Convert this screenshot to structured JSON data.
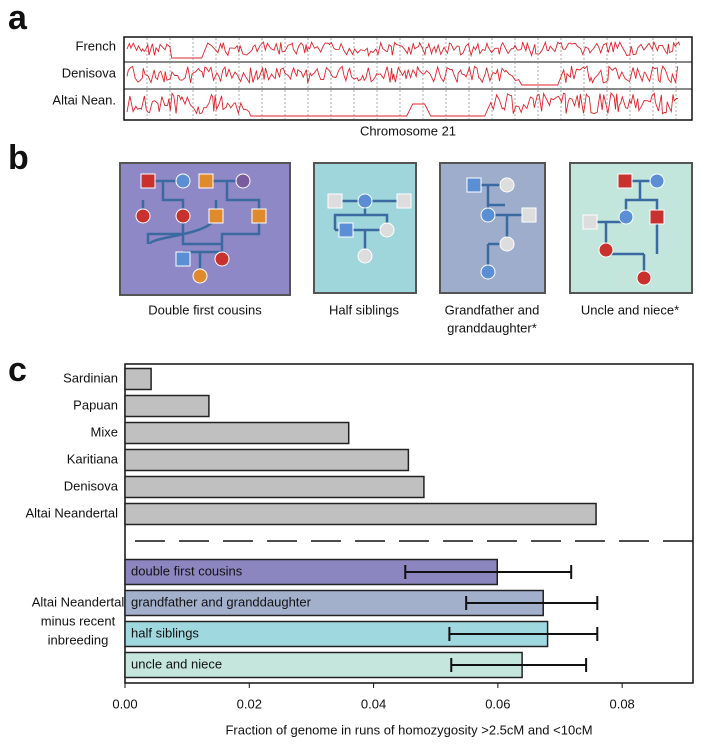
{
  "panel_a": {
    "label": "a",
    "tracks": [
      "French",
      "Denisova",
      "Altai Nean."
    ],
    "xlabel": "Chromosome 21"
  },
  "panel_b": {
    "label": "b",
    "pedigrees": [
      [
        "Double first cousins"
      ],
      [
        "Half siblings"
      ],
      [
        "Grandfather and",
        "granddaughter*"
      ],
      [
        "Uncle and niece*"
      ]
    ]
  },
  "chart_data": {
    "type": "bar",
    "orientation": "horizontal",
    "panel_label": "c",
    "categories": [
      "Sardinian",
      "Papuan",
      "Mixe",
      "Karitiana",
      "Denisova",
      "Altai Neandertal"
    ],
    "values": [
      0.0042,
      0.0135,
      0.036,
      0.0456,
      0.0481,
      0.0758
    ],
    "color": "#c0c0c0",
    "group_label": [
      "Altai Neandertal",
      "minus recent",
      "inbreeding"
    ],
    "subgroup": {
      "categories": [
        "double first cousins",
        "grandfather and granddaughter",
        "half siblings",
        "uncle and niece"
      ],
      "values": [
        0.0599,
        0.0673,
        0.068,
        0.0639
      ],
      "error_low": [
        0.0451,
        0.0549,
        0.0522,
        0.0525
      ],
      "error_high": [
        0.0718,
        0.076,
        0.076,
        0.0742
      ],
      "colors": [
        "#8c86c0",
        "#a3b0cc",
        "#a0d8df",
        "#c5e6dc"
      ]
    },
    "xlabel": "Fraction of genome in runs of homozygosity >2.5cM and <10cM",
    "xlim": [
      0,
      0.0914
    ],
    "xticks": [
      {
        "value": 0,
        "label": "0.00"
      },
      0.02,
      0.04,
      0.06,
      0.08
    ]
  }
}
